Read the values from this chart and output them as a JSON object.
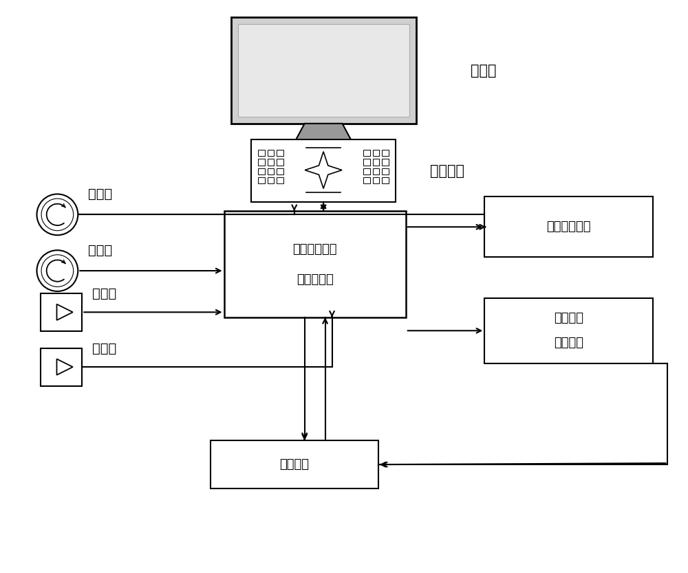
{
  "bg_color": "#ffffff",
  "figsize": [
    10,
    8.34
  ],
  "dpi": 100,
  "monitor_label": "显示器",
  "keyboard_label": "操作键盘",
  "main_label1": "测量计数器及",
  "main_label2": "计算机控制",
  "servo_ctrl_label": "伺服控制单元",
  "servo_drive_label1": "伺服电机",
  "servo_drive_label2": "驱动单元",
  "servo_motor_label": "伺服电机",
  "encoder1_label": "编码器",
  "encoder2_label": "编码器",
  "scanner1_label": "扫描头",
  "scanner2_label": "扫描头"
}
